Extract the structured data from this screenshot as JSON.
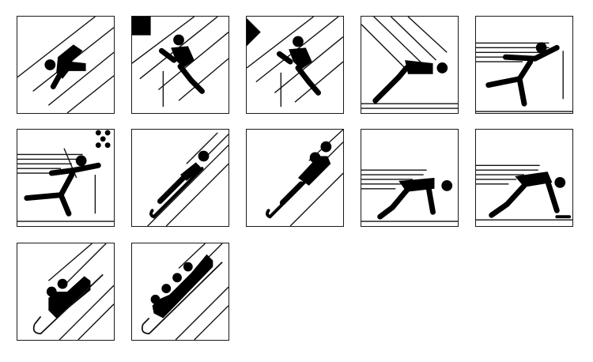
{
  "pictograms": [
    {
      "icon": "speed-skiing-icon"
    },
    {
      "icon": "ski-jump-flag-icon"
    },
    {
      "icon": "ski-jump-pennant-icon"
    },
    {
      "icon": "ski-jump-flight-icon"
    },
    {
      "icon": "cross-country-skiing-icon"
    },
    {
      "icon": "biathlon-icon"
    },
    {
      "icon": "luge-single-icon"
    },
    {
      "icon": "luge-double-icon"
    },
    {
      "icon": "speed-skating-icon"
    },
    {
      "icon": "short-track-skating-icon"
    },
    {
      "icon": "two-man-bobsleigh-icon"
    },
    {
      "icon": "four-man-bobsleigh-icon"
    }
  ],
  "colors": {
    "ink": "#000000",
    "paper": "#ffffff"
  }
}
